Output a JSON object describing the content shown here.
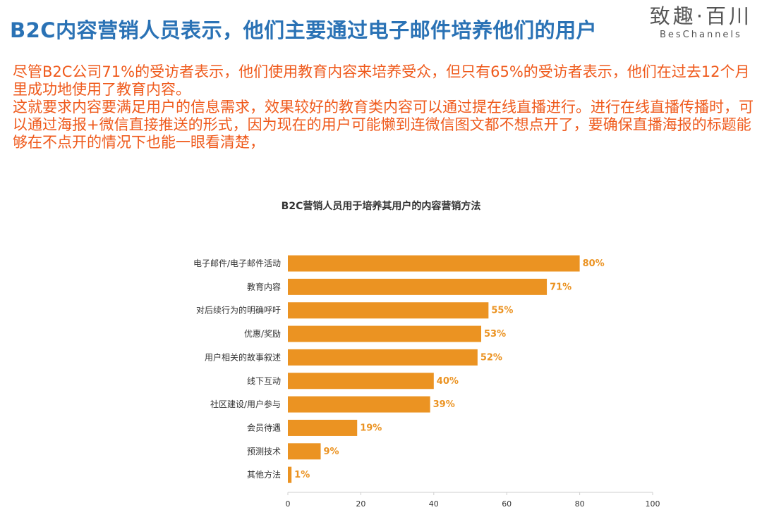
{
  "header": {
    "title": "B2C内容营销人员表示，他们主要通过电子邮件培养他们的用户",
    "logo_cn": "致趣·百川",
    "logo_en": "BesChannels"
  },
  "body": {
    "paragraph_1": "尽管B2C公司71%的受访者表示，他们使用教育内容来培养受众，但只有65%的受访者表示，他们在过去12个月里成功地使用了教育内容。",
    "paragraph_2": "这就要求内容要满足用户的信息需求，效果较好的教育类内容可以通过提在线直播进行。进行在线直播传播时，可以通过海报+微信直接推送的形式，因为现在的用户可能懒到连微信图文都不想点开了，要确保直播海报的标题能够在不点开的情况下也能一眼看清楚，"
  },
  "colors": {
    "title": "#2a72b5",
    "body_text": "#ef5a1c",
    "bar": "#eb9322",
    "bar_label": "#eb9322",
    "axis_text": "#333333"
  },
  "chart_data": {
    "type": "bar",
    "orientation": "horizontal",
    "title": "B2C营销人员用于培养其用户的内容营销方法",
    "categories": [
      "电子邮件/电子邮件活动",
      "教育内容",
      "对后续行为的明确呼吁",
      "优惠/奖励",
      "用户相关的故事叙述",
      "线下互动",
      "社区建设/用户参与",
      "会员待遇",
      "预测技术",
      "其他方法"
    ],
    "values": [
      80,
      71,
      55,
      53,
      52,
      40,
      39,
      19,
      9,
      1
    ],
    "data_labels": [
      "80%",
      "71%",
      "55%",
      "53%",
      "52%",
      "40%",
      "39%",
      "19%",
      "9%",
      "1%"
    ],
    "xlim": [
      0,
      100
    ],
    "x_ticks": [
      0,
      20,
      40,
      60,
      80,
      100
    ],
    "grid": false,
    "legend": "none"
  }
}
